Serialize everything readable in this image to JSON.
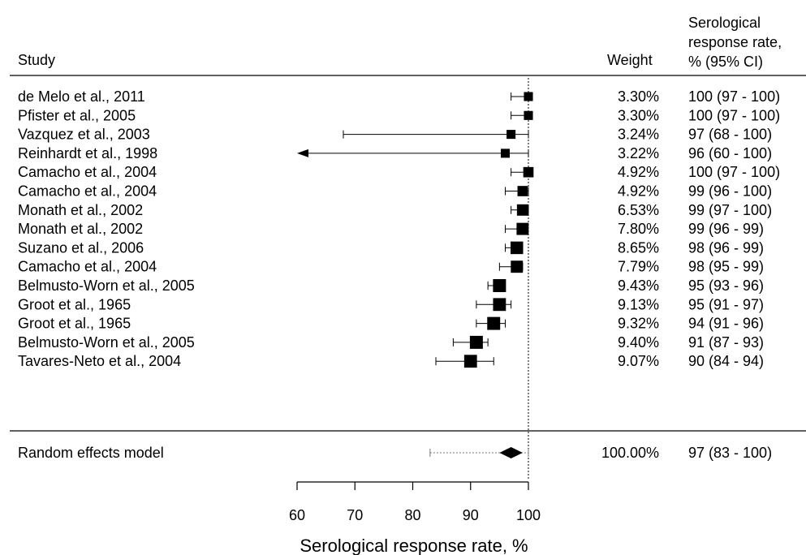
{
  "chart_data": {
    "type": "forest",
    "headers": {
      "study": "Study",
      "weight": "Weight",
      "rate_lines": [
        "Serological",
        "response rate,",
        "% (95% CI)"
      ]
    },
    "studies": [
      {
        "label": "de Melo et al., 2011",
        "est": 100,
        "lo": 97,
        "hi": 100,
        "weight_value": 3.3,
        "weight": "3.30%",
        "ci": "100 (97 - 100)"
      },
      {
        "label": "Pfister et al., 2005",
        "est": 100,
        "lo": 97,
        "hi": 100,
        "weight_value": 3.3,
        "weight": "3.30%",
        "ci": "100 (97 - 100)"
      },
      {
        "label": "Vazquez et al., 2003",
        "est": 97,
        "lo": 68,
        "hi": 100,
        "weight_value": 3.24,
        "weight": "3.24%",
        "ci": "97 (68 - 100)"
      },
      {
        "label": "Reinhardt et al., 1998",
        "est": 96,
        "lo": 60,
        "hi": 100,
        "weight_value": 3.22,
        "weight": "3.22%",
        "ci": "96 (60 - 100)",
        "lo_arrow": true
      },
      {
        "label": "Camacho et al., 2004",
        "est": 100,
        "lo": 97,
        "hi": 100,
        "weight_value": 4.92,
        "weight": "4.92%",
        "ci": "100 (97 - 100)"
      },
      {
        "label": "Camacho et al., 2004",
        "est": 99,
        "lo": 96,
        "hi": 100,
        "weight_value": 4.92,
        "weight": "4.92%",
        "ci": "99 (96 - 100)"
      },
      {
        "label": "Monath et al., 2002",
        "est": 99,
        "lo": 97,
        "hi": 100,
        "weight_value": 6.53,
        "weight": "6.53%",
        "ci": "99 (97 - 100)"
      },
      {
        "label": "Monath et al., 2002",
        "est": 99,
        "lo": 96,
        "hi": 99,
        "weight_value": 7.8,
        "weight": "7.80%",
        "ci": "99 (96 - 99)"
      },
      {
        "label": "Suzano et al., 2006",
        "est": 98,
        "lo": 96,
        "hi": 99,
        "weight_value": 8.65,
        "weight": "8.65%",
        "ci": "98 (96 - 99)"
      },
      {
        "label": "Camacho et al., 2004",
        "est": 98,
        "lo": 95,
        "hi": 99,
        "weight_value": 7.79,
        "weight": "7.79%",
        "ci": "98 (95 - 99)"
      },
      {
        "label": "Belmusto-Worn et al., 2005",
        "est": 95,
        "lo": 93,
        "hi": 96,
        "weight_value": 9.43,
        "weight": "9.43%",
        "ci": "95 (93 - 96)"
      },
      {
        "label": "Groot et al., 1965",
        "est": 95,
        "lo": 91,
        "hi": 97,
        "weight_value": 9.13,
        "weight": "9.13%",
        "ci": "95 (91 - 97)"
      },
      {
        "label": "Groot et al., 1965",
        "est": 94,
        "lo": 91,
        "hi": 96,
        "weight_value": 9.32,
        "weight": "9.32%",
        "ci": "94 (91 - 96)"
      },
      {
        "label": "Belmusto-Worn et al., 2005",
        "est": 91,
        "lo": 87,
        "hi": 93,
        "weight_value": 9.4,
        "weight": "9.40%",
        "ci": "91 (87 - 93)"
      },
      {
        "label": "Tavares-Neto et al., 2004",
        "est": 90,
        "lo": 84,
        "hi": 94,
        "weight_value": 9.07,
        "weight": "9.07%",
        "ci": "90 (84 - 94)"
      }
    ],
    "summary": {
      "label": "Random effects model",
      "est": 97,
      "lo": 95,
      "hi": 99,
      "pred_lo": 83,
      "pred_hi": 100,
      "weight": "100.00%",
      "ci": "97 (83 - 100)"
    },
    "x_axis": {
      "label": "Serological response rate, %",
      "ticks": [
        60,
        70,
        80,
        90,
        100
      ],
      "range": [
        60,
        100
      ]
    },
    "reference_line": 100
  }
}
